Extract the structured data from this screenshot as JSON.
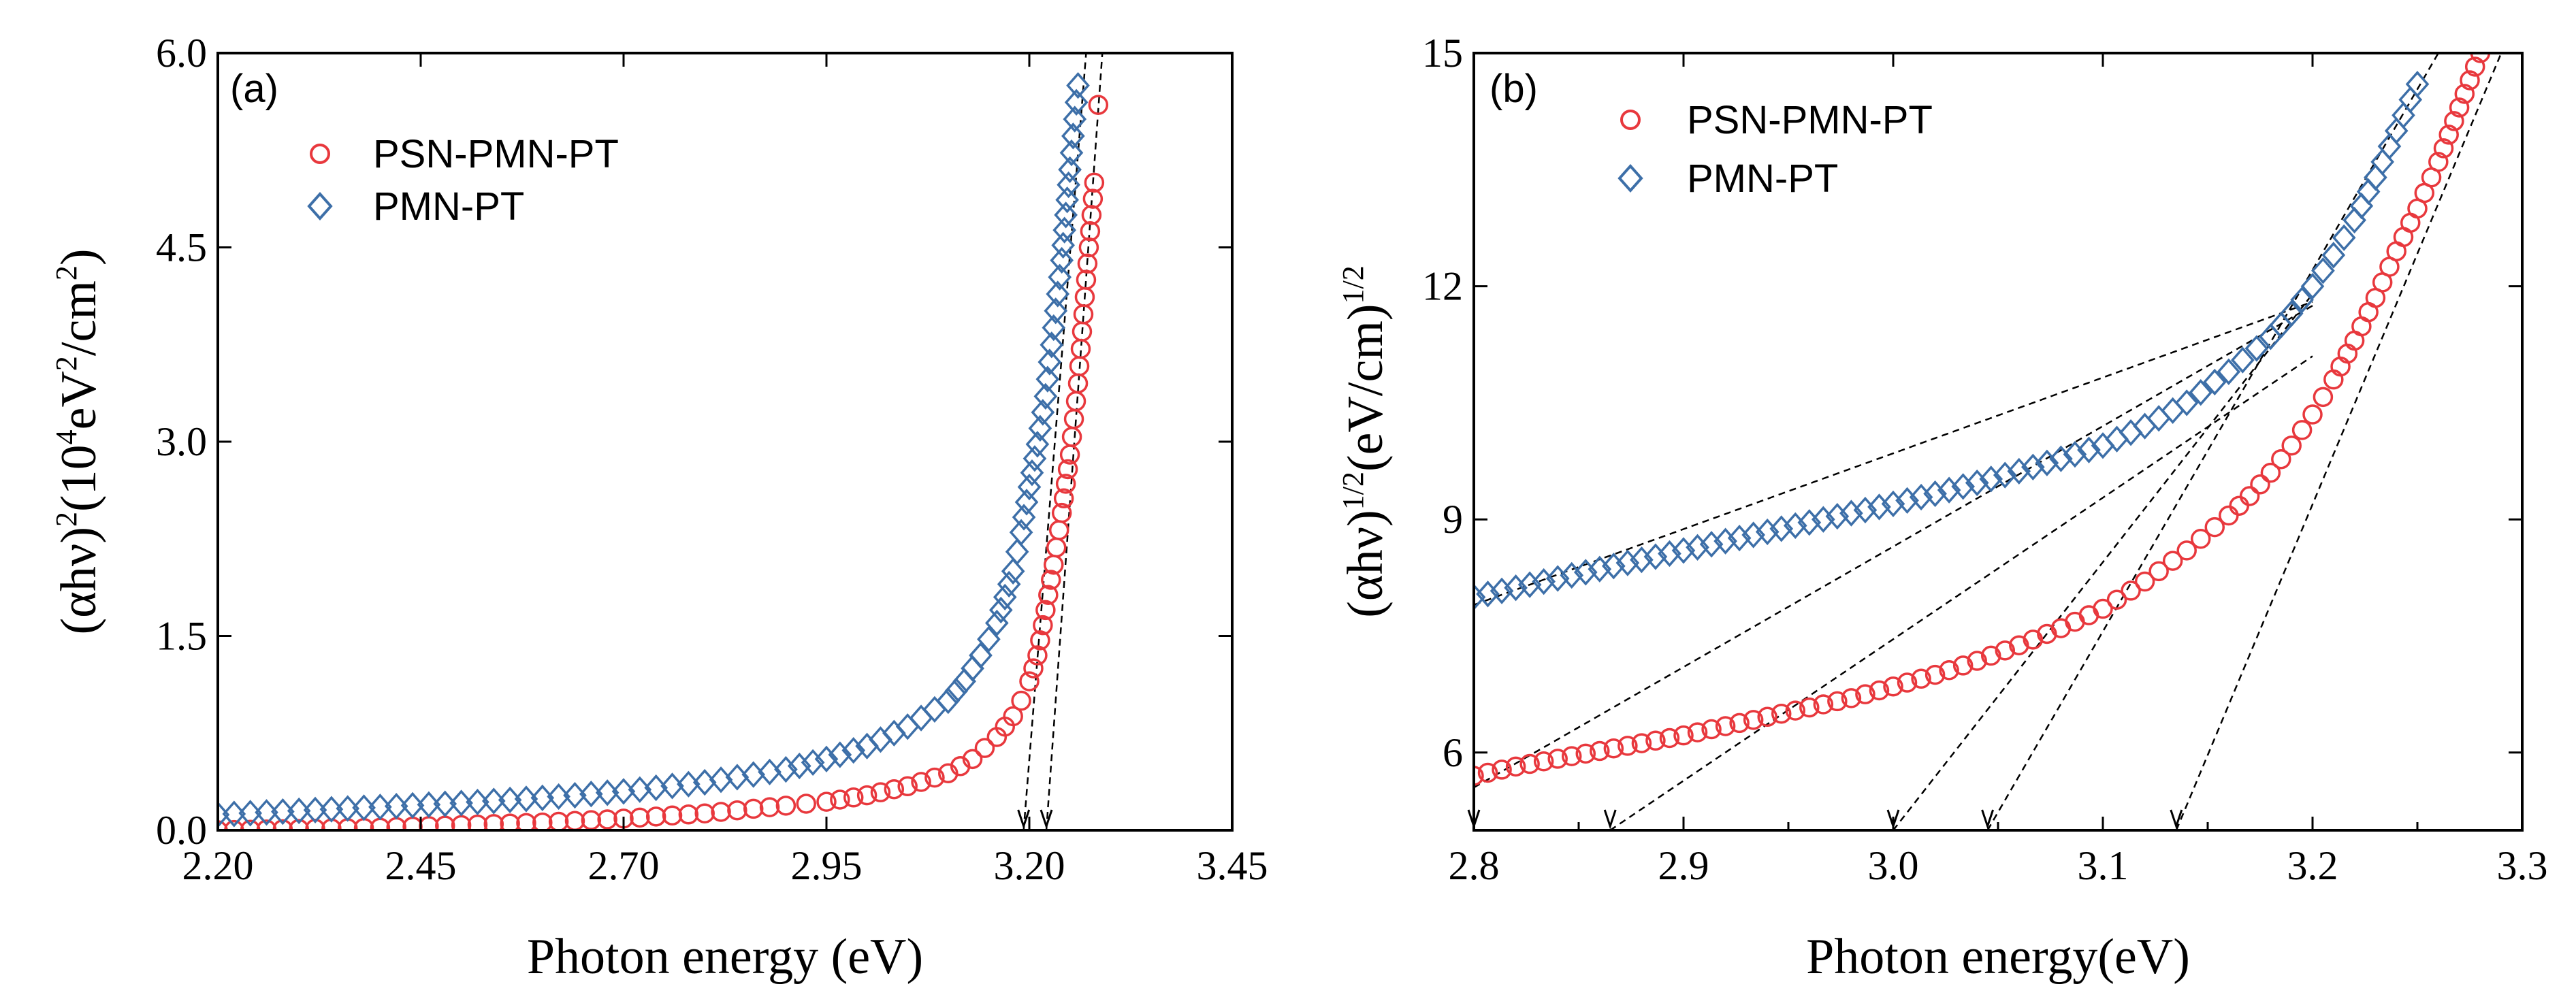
{
  "chart_data": [
    {
      "id": "a",
      "type": "scatter",
      "panel_label": "(a)",
      "xlabel": "Photon energy (eV)",
      "ylabel": {
        "base": "(αhν)",
        "sup1": "2",
        "mid": "(10",
        "sup2": "4",
        "unit1": "eV",
        "sup3": "2",
        "unit2": "/cm",
        "sup4": "2",
        "end": ")"
      },
      "xlim": [
        2.2,
        3.45
      ],
      "ylim": [
        0,
        6.0
      ],
      "xticks": [
        2.2,
        2.45,
        2.7,
        2.95,
        3.2,
        3.45
      ],
      "xtick_labels": [
        "2.20",
        "2.45",
        "2.70",
        "2.95",
        "3.20",
        "3.45"
      ],
      "yticks": [
        0.0,
        1.5,
        3.0,
        4.5,
        6.0
      ],
      "ytick_labels": [
        "0.0",
        "1.5",
        "3.0",
        "4.5",
        "6.0"
      ],
      "legend_position": "top-left",
      "series": [
        {
          "name": "PSN-PMN-PT",
          "marker": "circle",
          "color": "#e8383d",
          "x": [
            2.2,
            2.3,
            2.4,
            2.5,
            2.6,
            2.7,
            2.8,
            2.9,
            2.95,
            3.0,
            3.05,
            3.1,
            3.13,
            3.16,
            3.18,
            3.19,
            3.2,
            3.21,
            3.22,
            3.23,
            3.24,
            3.25,
            3.26,
            3.27,
            3.28
          ],
          "y": [
            0.0,
            0.01,
            0.02,
            0.04,
            0.06,
            0.09,
            0.13,
            0.19,
            0.22,
            0.27,
            0.34,
            0.44,
            0.55,
            0.72,
            0.88,
            1.0,
            1.15,
            1.35,
            1.7,
            2.05,
            2.45,
            2.9,
            3.45,
            4.25,
            5.0
          ],
          "extra_points": [
            {
              "x": 3.285,
              "y": 5.6
            }
          ]
        },
        {
          "name": "PMN-PT",
          "marker": "diamond",
          "color": "#3d6fa8",
          "x": [
            2.2,
            2.3,
            2.4,
            2.5,
            2.6,
            2.7,
            2.8,
            2.9,
            2.95,
            3.0,
            3.05,
            3.1,
            3.12,
            3.14,
            3.16,
            3.17,
            3.18,
            3.19,
            3.2,
            3.21,
            3.22,
            3.23,
            3.24,
            3.25,
            3.26
          ],
          "y": [
            0.12,
            0.15,
            0.18,
            0.21,
            0.25,
            0.3,
            0.37,
            0.47,
            0.55,
            0.65,
            0.8,
            1.0,
            1.15,
            1.35,
            1.6,
            1.8,
            2.0,
            2.3,
            2.65,
            2.98,
            3.35,
            3.88,
            4.4,
            5.1,
            5.75
          ]
        }
      ],
      "fit_lines": [
        {
          "series": "PSN-PMN-PT",
          "x_intercept": 3.221,
          "x_end": 3.29,
          "y_end": 6.0
        },
        {
          "series": "PMN-PT",
          "x_intercept": 3.193,
          "x_end": 3.27,
          "y_end": 6.0
        }
      ]
    },
    {
      "id": "b",
      "type": "scatter",
      "panel_label": "(b)",
      "xlabel": "Photon energy(eV)",
      "ylabel": {
        "base": "(αhν)",
        "sup1": "1/2",
        "unit": "(eV/cm)",
        "sup2": "1/2"
      },
      "xlim": [
        2.8,
        3.3
      ],
      "ylim": [
        5.0,
        15.0
      ],
      "xticks": [
        2.8,
        2.9,
        3.0,
        3.1,
        3.2,
        3.3
      ],
      "xtick_labels": [
        "2.8",
        "2.9",
        "3.0",
        "3.1",
        "3.2",
        "3.3"
      ],
      "yticks": [
        6,
        9,
        12,
        15
      ],
      "ytick_labels": [
        "6",
        "9",
        "12",
        "15"
      ],
      "legend_position": "top-left",
      "series": [
        {
          "name": "PSN-PMN-PT",
          "marker": "circle",
          "color": "#e8383d",
          "x": [
            2.8,
            2.82,
            2.84,
            2.86,
            2.88,
            2.9,
            2.92,
            2.94,
            2.96,
            2.98,
            3.0,
            3.02,
            3.04,
            3.06,
            3.08,
            3.1,
            3.12,
            3.14,
            3.16,
            3.17,
            3.18,
            3.19,
            3.2,
            3.21,
            3.22,
            3.23,
            3.24,
            3.25,
            3.26,
            3.27,
            3.28
          ],
          "y": [
            5.7,
            5.82,
            5.92,
            6.02,
            6.12,
            6.22,
            6.34,
            6.46,
            6.58,
            6.7,
            6.85,
            7.0,
            7.18,
            7.38,
            7.6,
            7.85,
            8.2,
            8.6,
            9.05,
            9.3,
            9.6,
            9.95,
            10.35,
            10.8,
            11.3,
            11.85,
            12.45,
            13.0,
            13.6,
            14.3,
            15.0
          ]
        },
        {
          "name": "PMN-PT",
          "marker": "diamond",
          "color": "#3d6fa8",
          "x": [
            2.8,
            2.82,
            2.84,
            2.86,
            2.88,
            2.9,
            2.92,
            2.94,
            2.96,
            2.98,
            3.0,
            3.02,
            3.04,
            3.06,
            3.08,
            3.1,
            3.12,
            3.14,
            3.16,
            3.18,
            3.19,
            3.2,
            3.21,
            3.22,
            3.23,
            3.24,
            3.25
          ],
          "y": [
            8.0,
            8.12,
            8.24,
            8.36,
            8.48,
            8.6,
            8.72,
            8.84,
            8.96,
            9.08,
            9.2,
            9.33,
            9.47,
            9.62,
            9.78,
            9.95,
            10.2,
            10.5,
            10.9,
            11.35,
            11.65,
            12.0,
            12.4,
            12.85,
            13.4,
            14.0,
            14.6
          ]
        }
      ],
      "fit_lines": [
        {
          "x1": 2.8,
          "y1": 5.55,
          "x2": 3.2,
          "y2": 11.75
        },
        {
          "x1": 2.8,
          "y1": 7.9,
          "x2": 3.2,
          "y2": 11.8
        },
        {
          "x1": 2.865,
          "y1": 5.0,
          "x2": 3.2,
          "y2": 11.1
        },
        {
          "x1": 3.0,
          "y1": 5.0,
          "x2": 3.2,
          "y2": 11.9
        },
        {
          "x1": 3.045,
          "y1": 5.0,
          "x2": 3.26,
          "y2": 15.0
        },
        {
          "x1": 3.135,
          "y1": 5.0,
          "x2": 3.29,
          "y2": 15.0
        }
      ],
      "arrow_points": [
        2.8,
        2.865,
        3.0,
        3.045,
        3.135
      ]
    }
  ]
}
